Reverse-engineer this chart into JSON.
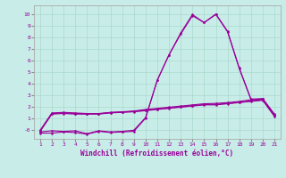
{
  "xlabel": "Windchill (Refroidissement éolien,°C)",
  "xlim": [
    0.5,
    21.5
  ],
  "ylim": [
    -0.8,
    10.8
  ],
  "xticks": [
    1,
    2,
    3,
    4,
    5,
    6,
    7,
    8,
    9,
    10,
    11,
    12,
    13,
    14,
    15,
    16,
    17,
    18,
    19,
    20,
    21
  ],
  "yticks": [
    0,
    1,
    2,
    3,
    4,
    5,
    6,
    7,
    8,
    9,
    10
  ],
  "ytick_labels": [
    "-0",
    "1",
    "2",
    "3",
    "4",
    "5",
    "6",
    "7",
    "8",
    "9",
    "10"
  ],
  "bg_color": "#c8ede8",
  "line_color": "#990099",
  "grid_color": "#aad8cc",
  "lines": [
    [
      -0.3,
      -0.3,
      -0.2,
      -0.25,
      -0.4,
      -0.15,
      -0.25,
      -0.2,
      -0.15,
      1.0,
      4.3,
      6.5,
      8.3,
      9.9,
      9.3,
      10.0,
      8.5,
      5.3,
      2.6,
      2.65,
      1.3
    ],
    [
      -0.2,
      -0.1,
      -0.15,
      -0.1,
      -0.35,
      -0.1,
      -0.2,
      -0.15,
      -0.05,
      1.05,
      4.3,
      6.5,
      8.4,
      10.0,
      9.3,
      10.05,
      8.55,
      5.35,
      2.65,
      2.7,
      1.35
    ],
    [
      -0.15,
      1.35,
      1.4,
      1.35,
      1.35,
      1.35,
      1.45,
      1.5,
      1.55,
      1.65,
      1.75,
      1.85,
      1.95,
      2.05,
      2.15,
      2.15,
      2.25,
      2.35,
      2.45,
      2.55,
      1.15
    ],
    [
      -0.1,
      1.4,
      1.45,
      1.4,
      1.38,
      1.38,
      1.48,
      1.53,
      1.58,
      1.68,
      1.78,
      1.88,
      1.98,
      2.08,
      2.18,
      2.2,
      2.28,
      2.38,
      2.5,
      2.6,
      1.2
    ],
    [
      -0.05,
      1.45,
      1.5,
      1.45,
      1.4,
      1.4,
      1.5,
      1.55,
      1.62,
      1.75,
      1.85,
      1.95,
      2.05,
      2.15,
      2.25,
      2.28,
      2.35,
      2.45,
      2.6,
      2.65,
      1.25
    ]
  ]
}
